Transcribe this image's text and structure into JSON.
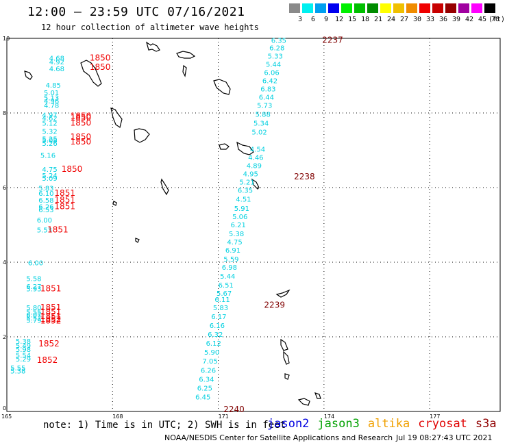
{
  "header": {
    "title": "12:00 – 23:59 UTC 07/16/2021",
    "subtitle": "12 hour collection of altimeter wave heights"
  },
  "scale": {
    "colors": [
      "#8a8a8a",
      "#00f0f0",
      "#00a0f0",
      "#0000f0",
      "#00f000",
      "#00c000",
      "#008c00",
      "#ffff00",
      "#f0c000",
      "#f08c00",
      "#f00000",
      "#c80000",
      "#960000",
      "#a000a0",
      "#ff00ff",
      "#000000"
    ],
    "labels": [
      "3",
      "6",
      "9",
      "12",
      "15",
      "18",
      "21",
      "24",
      "27",
      "30",
      "33",
      "36",
      "39",
      "42",
      "45",
      "70"
    ],
    "unit": "(ft)"
  },
  "map": {
    "lon_ticks": [
      "165",
      "168",
      "171",
      "174",
      "177"
    ],
    "lat_ticks": [
      "0",
      "2",
      "4",
      "6",
      "8",
      "10"
    ],
    "island_color": "#000000",
    "grid_color": "#000000"
  },
  "observations": [
    {
      "sat": "jason2",
      "lon": 172.5,
      "lat": 9.88,
      "swh": "6.35"
    },
    {
      "sat": "jason2",
      "lon": 172.45,
      "lat": 9.68,
      "swh": "6.28"
    },
    {
      "sat": "jason2",
      "lon": 172.4,
      "lat": 9.46,
      "swh": "5.33"
    },
    {
      "sat": "jason2",
      "lon": 172.35,
      "lat": 9.24,
      "swh": "5.44"
    },
    {
      "sat": "jason2",
      "lon": 172.3,
      "lat": 9.02,
      "swh": "6.06"
    },
    {
      "sat": "jason2",
      "lon": 172.25,
      "lat": 8.8,
      "swh": "6.42"
    },
    {
      "sat": "jason2",
      "lon": 172.2,
      "lat": 8.58,
      "swh": "6.83"
    },
    {
      "sat": "jason2",
      "lon": 172.15,
      "lat": 8.36,
      "swh": "6.44"
    },
    {
      "sat": "jason2",
      "lon": 172.1,
      "lat": 8.14,
      "swh": "5.73"
    },
    {
      "sat": "jason2",
      "lon": 172.05,
      "lat": 7.9,
      "swh": "5.88"
    },
    {
      "sat": "jason2",
      "lon": 172.0,
      "lat": 7.66,
      "swh": "5.34"
    },
    {
      "sat": "jason2",
      "lon": 171.95,
      "lat": 7.42,
      "swh": "5.02"
    },
    {
      "sat": "jason2",
      "lon": 171.9,
      "lat": 6.96,
      "swh": "4.54"
    },
    {
      "sat": "jason2",
      "lon": 171.85,
      "lat": 6.74,
      "swh": "4.46"
    },
    {
      "sat": "jason2",
      "lon": 171.8,
      "lat": 6.52,
      "swh": "4.89"
    },
    {
      "sat": "jason2",
      "lon": 171.7,
      "lat": 6.3,
      "swh": "4.95"
    },
    {
      "sat": "jason2",
      "lon": 171.6,
      "lat": 6.08,
      "swh": "5.21"
    },
    {
      "sat": "jason2",
      "lon": 171.55,
      "lat": 5.86,
      "swh": "6.35"
    },
    {
      "sat": "jason2",
      "lon": 171.5,
      "lat": 5.62,
      "swh": "4.51"
    },
    {
      "sat": "jason2",
      "lon": 171.45,
      "lat": 5.38,
      "swh": "5.91"
    },
    {
      "sat": "jason2",
      "lon": 171.4,
      "lat": 5.16,
      "swh": "5.06"
    },
    {
      "sat": "jason2",
      "lon": 171.35,
      "lat": 4.94,
      "swh": "6.21"
    },
    {
      "sat": "jason2",
      "lon": 171.3,
      "lat": 4.7,
      "swh": "5.38"
    },
    {
      "sat": "jason2",
      "lon": 171.25,
      "lat": 4.48,
      "swh": "4.75"
    },
    {
      "sat": "jason2",
      "lon": 171.2,
      "lat": 4.26,
      "swh": "6.91"
    },
    {
      "sat": "jason2",
      "lon": 171.15,
      "lat": 4.02,
      "swh": "5.59"
    },
    {
      "sat": "jason2",
      "lon": 171.1,
      "lat": 3.8,
      "swh": "6.98"
    },
    {
      "sat": "jason2",
      "lon": 171.05,
      "lat": 3.56,
      "swh": "5.44"
    },
    {
      "sat": "jason2",
      "lon": 171.0,
      "lat": 3.32,
      "swh": "6.51"
    },
    {
      "sat": "jason2",
      "lon": 170.95,
      "lat": 3.1,
      "swh": "5.67"
    },
    {
      "sat": "jason2",
      "lon": 170.9,
      "lat": 2.94,
      "swh": "6.11"
    },
    {
      "sat": "jason2",
      "lon": 170.85,
      "lat": 2.72,
      "swh": "5.83"
    },
    {
      "sat": "jason2",
      "lon": 170.8,
      "lat": 2.48,
      "swh": "6.17"
    },
    {
      "sat": "jason2",
      "lon": 170.75,
      "lat": 2.24,
      "swh": "6.16"
    },
    {
      "sat": "jason2",
      "lon": 170.7,
      "lat": 2.0,
      "swh": "6.32"
    },
    {
      "sat": "jason2",
      "lon": 170.65,
      "lat": 1.76,
      "swh": "6.12"
    },
    {
      "sat": "jason2",
      "lon": 170.6,
      "lat": 1.52,
      "swh": "5.90"
    },
    {
      "sat": "jason2",
      "lon": 170.55,
      "lat": 1.28,
      "swh": "7.05"
    },
    {
      "sat": "jason2",
      "lon": 170.5,
      "lat": 1.04,
      "swh": "6.26"
    },
    {
      "sat": "jason2",
      "lon": 170.45,
      "lat": 0.8,
      "swh": "6.34"
    },
    {
      "sat": "jason2",
      "lon": 170.4,
      "lat": 0.56,
      "swh": "6.25"
    },
    {
      "sat": "jason2",
      "lon": 170.35,
      "lat": 0.32,
      "swh": "6.45"
    },
    {
      "sat": "jason2",
      "lon": 166.2,
      "lat": 9.4,
      "swh": "4.68"
    },
    {
      "sat": "jason2",
      "lon": 166.2,
      "lat": 9.3,
      "swh": "4.92"
    },
    {
      "sat": "jason2",
      "lon": 166.2,
      "lat": 9.12,
      "swh": "4.68"
    },
    {
      "sat": "jason2",
      "lon": 166.1,
      "lat": 8.68,
      "swh": "4.85"
    },
    {
      "sat": "jason2",
      "lon": 166.05,
      "lat": 8.48,
      "swh": "5.01"
    },
    {
      "sat": "jason2",
      "lon": 166.05,
      "lat": 8.34,
      "swh": "5.13"
    },
    {
      "sat": "jason2",
      "lon": 166.05,
      "lat": 8.26,
      "swh": "4.96"
    },
    {
      "sat": "jason2",
      "lon": 166.05,
      "lat": 8.14,
      "swh": "4.78"
    },
    {
      "sat": "jason2",
      "lon": 166.0,
      "lat": 7.88,
      "swh": "4.97"
    },
    {
      "sat": "jason2",
      "lon": 166.0,
      "lat": 7.8,
      "swh": "4.62"
    },
    {
      "sat": "jason2",
      "lon": 166.0,
      "lat": 7.66,
      "swh": "5.12"
    },
    {
      "sat": "jason2",
      "lon": 166.0,
      "lat": 7.44,
      "swh": "5.32"
    },
    {
      "sat": "jason2",
      "lon": 166.0,
      "lat": 7.24,
      "swh": "5.25"
    },
    {
      "sat": "jason2",
      "lon": 166.0,
      "lat": 7.2,
      "swh": "5.08"
    },
    {
      "sat": "jason2",
      "lon": 166.0,
      "lat": 7.12,
      "swh": "5.26"
    },
    {
      "sat": "jason2",
      "lon": 165.95,
      "lat": 6.8,
      "swh": "5.16"
    },
    {
      "sat": "jason2",
      "lon": 166.0,
      "lat": 6.42,
      "swh": "4.75"
    },
    {
      "sat": "jason2",
      "lon": 166.0,
      "lat": 6.26,
      "swh": "5.24"
    },
    {
      "sat": "jason2",
      "lon": 166.0,
      "lat": 6.18,
      "swh": "5.09"
    },
    {
      "sat": "jason2",
      "lon": 165.9,
      "lat": 5.92,
      "swh": "5.83"
    },
    {
      "sat": "jason2",
      "lon": 165.9,
      "lat": 5.78,
      "swh": "6.10"
    },
    {
      "sat": "jason2",
      "lon": 165.9,
      "lat": 5.6,
      "swh": "6.58"
    },
    {
      "sat": "jason2",
      "lon": 165.9,
      "lat": 5.42,
      "swh": "6.26"
    },
    {
      "sat": "jason2",
      "lon": 165.9,
      "lat": 5.34,
      "swh": "6.53"
    },
    {
      "sat": "jason2",
      "lon": 165.85,
      "lat": 5.06,
      "swh": "6.00"
    },
    {
      "sat": "jason2",
      "lon": 165.85,
      "lat": 4.8,
      "swh": "5.53"
    },
    {
      "sat": "jason2",
      "lon": 165.6,
      "lat": 3.92,
      "swh": "6.00"
    },
    {
      "sat": "jason2",
      "lon": 165.55,
      "lat": 3.5,
      "swh": "5.58"
    },
    {
      "sat": "jason2",
      "lon": 165.55,
      "lat": 3.28,
      "swh": "6.27"
    },
    {
      "sat": "jason2",
      "lon": 165.55,
      "lat": 3.22,
      "swh": "5.93"
    },
    {
      "sat": "jason2",
      "lon": 165.55,
      "lat": 2.72,
      "swh": "5.80"
    },
    {
      "sat": "jason2",
      "lon": 165.55,
      "lat": 2.6,
      "swh": "5.55"
    },
    {
      "sat": "jason2",
      "lon": 165.55,
      "lat": 2.52,
      "swh": "6.07"
    },
    {
      "sat": "jason2",
      "lon": 165.55,
      "lat": 2.44,
      "swh": "5.57"
    },
    {
      "sat": "jason2",
      "lon": 165.55,
      "lat": 2.38,
      "swh": "5.79"
    },
    {
      "sat": "jason2",
      "lon": 165.25,
      "lat": 1.82,
      "swh": "5.38"
    },
    {
      "sat": "jason2",
      "lon": 165.25,
      "lat": 1.7,
      "swh": "5.49"
    },
    {
      "sat": "jason2",
      "lon": 165.25,
      "lat": 1.6,
      "swh": "5.98"
    },
    {
      "sat": "jason2",
      "lon": 165.25,
      "lat": 1.44,
      "swh": "5.54"
    },
    {
      "sat": "jason2",
      "lon": 165.25,
      "lat": 1.34,
      "swh": "5.29"
    },
    {
      "sat": "jason2",
      "lon": 165.1,
      "lat": 1.1,
      "swh": "5.55"
    },
    {
      "sat": "jason2",
      "lon": 165.1,
      "lat": 1.02,
      "swh": "5.38"
    }
  ],
  "time_labels": [
    {
      "lon": 173.95,
      "lat": 9.88,
      "text": "2237",
      "color": "#800000"
    },
    {
      "lon": 173.15,
      "lat": 6.22,
      "text": "2238",
      "color": "#800000"
    },
    {
      "lon": 172.3,
      "lat": 2.78,
      "text": "2239",
      "color": "#800000"
    },
    {
      "lon": 171.15,
      "lat": -0.02,
      "text": "2240",
      "color": "#800000"
    },
    {
      "lon": 167.35,
      "lat": 9.4,
      "text": "1850",
      "color": "#f00000"
    },
    {
      "lon": 167.35,
      "lat": 9.16,
      "text": "1850",
      "color": "#f00000"
    },
    {
      "lon": 166.8,
      "lat": 7.84,
      "text": "1850",
      "color": "#f00000"
    },
    {
      "lon": 166.8,
      "lat": 7.8,
      "text": "1850",
      "color": "#f00000"
    },
    {
      "lon": 166.8,
      "lat": 7.66,
      "text": "1850",
      "color": "#f00000"
    },
    {
      "lon": 166.8,
      "lat": 7.28,
      "text": "1850",
      "color": "#f00000"
    },
    {
      "lon": 166.8,
      "lat": 7.16,
      "text": "1850",
      "color": "#f00000"
    },
    {
      "lon": 166.55,
      "lat": 6.42,
      "text": "1850",
      "color": "#f00000"
    },
    {
      "lon": 166.35,
      "lat": 5.78,
      "text": "1851",
      "color": "#f00000"
    },
    {
      "lon": 166.35,
      "lat": 5.6,
      "text": "1851",
      "color": "#f00000"
    },
    {
      "lon": 166.35,
      "lat": 5.42,
      "text": "1851",
      "color": "#f00000"
    },
    {
      "lon": 166.15,
      "lat": 4.8,
      "text": "1851",
      "color": "#f00000"
    },
    {
      "lon": 165.95,
      "lat": 3.22,
      "text": "1851",
      "color": "#f00000"
    },
    {
      "lon": 165.95,
      "lat": 2.72,
      "text": "1851",
      "color": "#f00000"
    },
    {
      "lon": 165.95,
      "lat": 2.6,
      "text": "1851",
      "color": "#f00000"
    },
    {
      "lon": 165.95,
      "lat": 2.48,
      "text": "1851",
      "color": "#f00000"
    },
    {
      "lon": 165.95,
      "lat": 2.4,
      "text": "1852",
      "color": "#f00000"
    },
    {
      "lon": 165.95,
      "lat": 2.36,
      "text": "1852",
      "color": "#f00000"
    },
    {
      "lon": 165.9,
      "lat": 1.74,
      "text": "1852",
      "color": "#f00000"
    },
    {
      "lon": 165.85,
      "lat": 1.3,
      "text": "1852",
      "color": "#f00000"
    }
  ],
  "note": "note: 1) Time is in UTC; 2) SWH is in feet",
  "satellites": [
    {
      "name": "jason2",
      "color": "#0000e0"
    },
    {
      "name": "jason3",
      "color": "#00a000"
    },
    {
      "name": "altika",
      "color": "#f0a000"
    },
    {
      "name": "cryosat",
      "color": "#e00000"
    },
    {
      "name": "s3a",
      "color": "#900000"
    }
  ],
  "footer": {
    "credit": "NOAA/NESDIS Center for Satellite Applications and Research",
    "generated": "Jul 19 08:27:43 UTC 2021"
  }
}
